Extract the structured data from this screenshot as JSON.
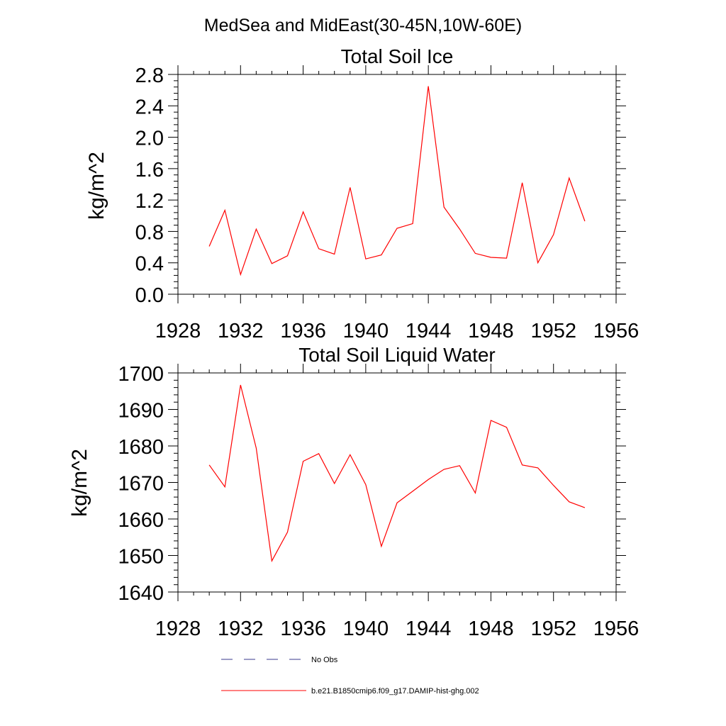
{
  "suptitle": "MedSea and MidEast(30-45N,10W-60E)",
  "line_color": "#ff0000",
  "noobs_color": "#3a3a8c",
  "legend": {
    "no_obs_label": "No Obs",
    "model_label": "b.e21.B1850cmip6.f09_g17.DAMIP-hist-ghg.002"
  },
  "chart_data": [
    {
      "type": "line",
      "title": "Total Soil Ice",
      "xlabel": "",
      "ylabel": "kg/m^2",
      "xlim": [
        1928,
        1956
      ],
      "ylim": [
        0.0,
        2.8
      ],
      "xticks": [
        1928,
        1932,
        1936,
        1940,
        1944,
        1948,
        1952,
        1956
      ],
      "yticks": [
        0.0,
        0.4,
        0.8,
        1.2,
        1.6,
        2.0,
        2.4,
        2.8
      ],
      "ytick_labels": [
        "0.0",
        "0.4",
        "0.8",
        "1.2",
        "1.6",
        "2.0",
        "2.4",
        "2.8"
      ],
      "series": [
        {
          "name": "b.e21.B1850cmip6.f09_g17.DAMIP-hist-ghg.002",
          "x": [
            1930,
            1931,
            1932,
            1933,
            1934,
            1935,
            1936,
            1937,
            1938,
            1939,
            1940,
            1941,
            1942,
            1943,
            1944,
            1945,
            1946,
            1947,
            1948,
            1949,
            1950,
            1951,
            1952,
            1953,
            1954
          ],
          "values": [
            0.61,
            1.07,
            0.25,
            0.83,
            0.39,
            0.49,
            1.05,
            0.58,
            0.51,
            1.36,
            0.45,
            0.5,
            0.84,
            0.9,
            2.65,
            1.11,
            0.83,
            0.52,
            0.47,
            0.46,
            1.42,
            0.4,
            0.76,
            1.48,
            0.93
          ]
        }
      ]
    },
    {
      "type": "line",
      "title": "Total Soil Liquid Water",
      "xlabel": "",
      "ylabel": "kg/m^2",
      "xlim": [
        1928,
        1956
      ],
      "ylim": [
        1640,
        1700
      ],
      "xticks": [
        1928,
        1932,
        1936,
        1940,
        1944,
        1948,
        1952,
        1956
      ],
      "yticks": [
        1640,
        1650,
        1660,
        1670,
        1680,
        1690,
        1700
      ],
      "ytick_labels": [
        "1640",
        "1650",
        "1660",
        "1670",
        "1680",
        "1690",
        "1700"
      ],
      "series": [
        {
          "name": "b.e21.B1850cmip6.f09_g17.DAMIP-hist-ghg.002",
          "x": [
            1930,
            1931,
            1932,
            1933,
            1934,
            1935,
            1936,
            1937,
            1938,
            1939,
            1940,
            1941,
            1942,
            1943,
            1944,
            1945,
            1946,
            1947,
            1948,
            1949,
            1950,
            1951,
            1952,
            1953,
            1954
          ],
          "values": [
            1674.8,
            1668.8,
            1696.7,
            1679.4,
            1648.5,
            1656.4,
            1675.8,
            1677.9,
            1669.7,
            1677.6,
            1669.4,
            1652.5,
            1664.4,
            1667.6,
            1670.8,
            1673.6,
            1674.6,
            1667.1,
            1687.0,
            1685.1,
            1674.8,
            1674.0,
            1669.2,
            1664.7,
            1663.1
          ]
        }
      ]
    }
  ]
}
